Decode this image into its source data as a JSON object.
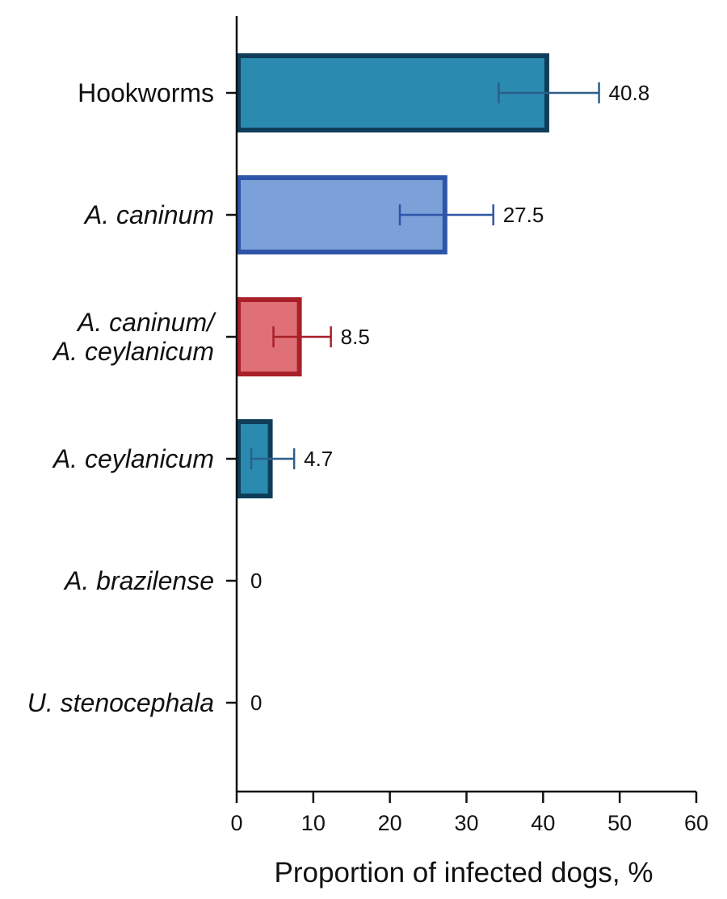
{
  "chart_data": {
    "type": "bar",
    "orientation": "horizontal",
    "categories": [
      {
        "lines": [
          "Hookworms"
        ],
        "italic": false
      },
      {
        "lines": [
          "A. caninum"
        ],
        "italic": true
      },
      {
        "lines": [
          "A. caninum/",
          "A. ceylanicum"
        ],
        "italic": true
      },
      {
        "lines": [
          "A. ceylanicum"
        ],
        "italic": true
      },
      {
        "lines": [
          "A. brazilense"
        ],
        "italic": true
      },
      {
        "lines": [
          "U. stenocephala"
        ],
        "italic": true
      }
    ],
    "values": [
      40.8,
      27.5,
      8.5,
      4.7,
      0,
      0
    ],
    "value_labels": [
      "40.8",
      "27.5",
      "8.5",
      "4.7",
      "0",
      "0"
    ],
    "error_low": [
      34.2,
      21.3,
      4.8,
      1.9,
      0,
      0
    ],
    "error_high": [
      47.3,
      33.5,
      12.3,
      7.5,
      0,
      0
    ],
    "fill_colors": [
      "#2a8ab0",
      "#7ca0d8",
      "#e07078",
      "#2a8ab0",
      "#2a8ab0",
      "#2a8ab0"
    ],
    "border_colors": [
      "#0f3d58",
      "#2e55a8",
      "#a82028",
      "#0f3d58",
      "#0f3d58",
      "#0f3d58"
    ],
    "errorbar_colors": [
      "#2b5f8a",
      "#2e55a8",
      "#a82028",
      "#2b5f8a",
      "#2b5f8a",
      "#2b5f8a"
    ],
    "xlabel": "Proportion of infected dogs, %",
    "xlim": [
      0,
      60
    ],
    "xticks": [
      0,
      10,
      20,
      30,
      40,
      50,
      60
    ],
    "grid": false,
    "legend": "none"
  }
}
